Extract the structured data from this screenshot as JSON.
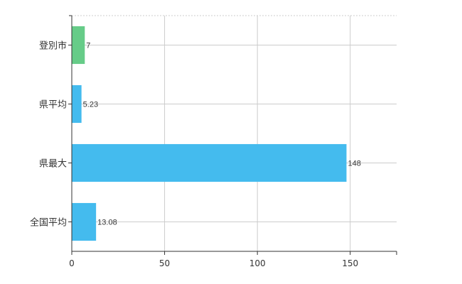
{
  "chart_data": {
    "type": "bar",
    "orientation": "horizontal",
    "categories": [
      "登別市",
      "県平均",
      "県最大",
      "全国平均"
    ],
    "values": [
      7,
      5.23,
      148,
      13.08
    ],
    "value_labels": [
      "7",
      "5.23",
      "148",
      "13.08"
    ],
    "xlim": [
      0,
      175
    ],
    "xticks": [
      0,
      50,
      100,
      150
    ],
    "xtick_labels": [
      "0",
      "50",
      "100",
      "150"
    ],
    "grid": true,
    "legend": "none",
    "colors": [
      "#66cc88",
      "#44bbee",
      "#44bbee",
      "#44bbee"
    ]
  }
}
